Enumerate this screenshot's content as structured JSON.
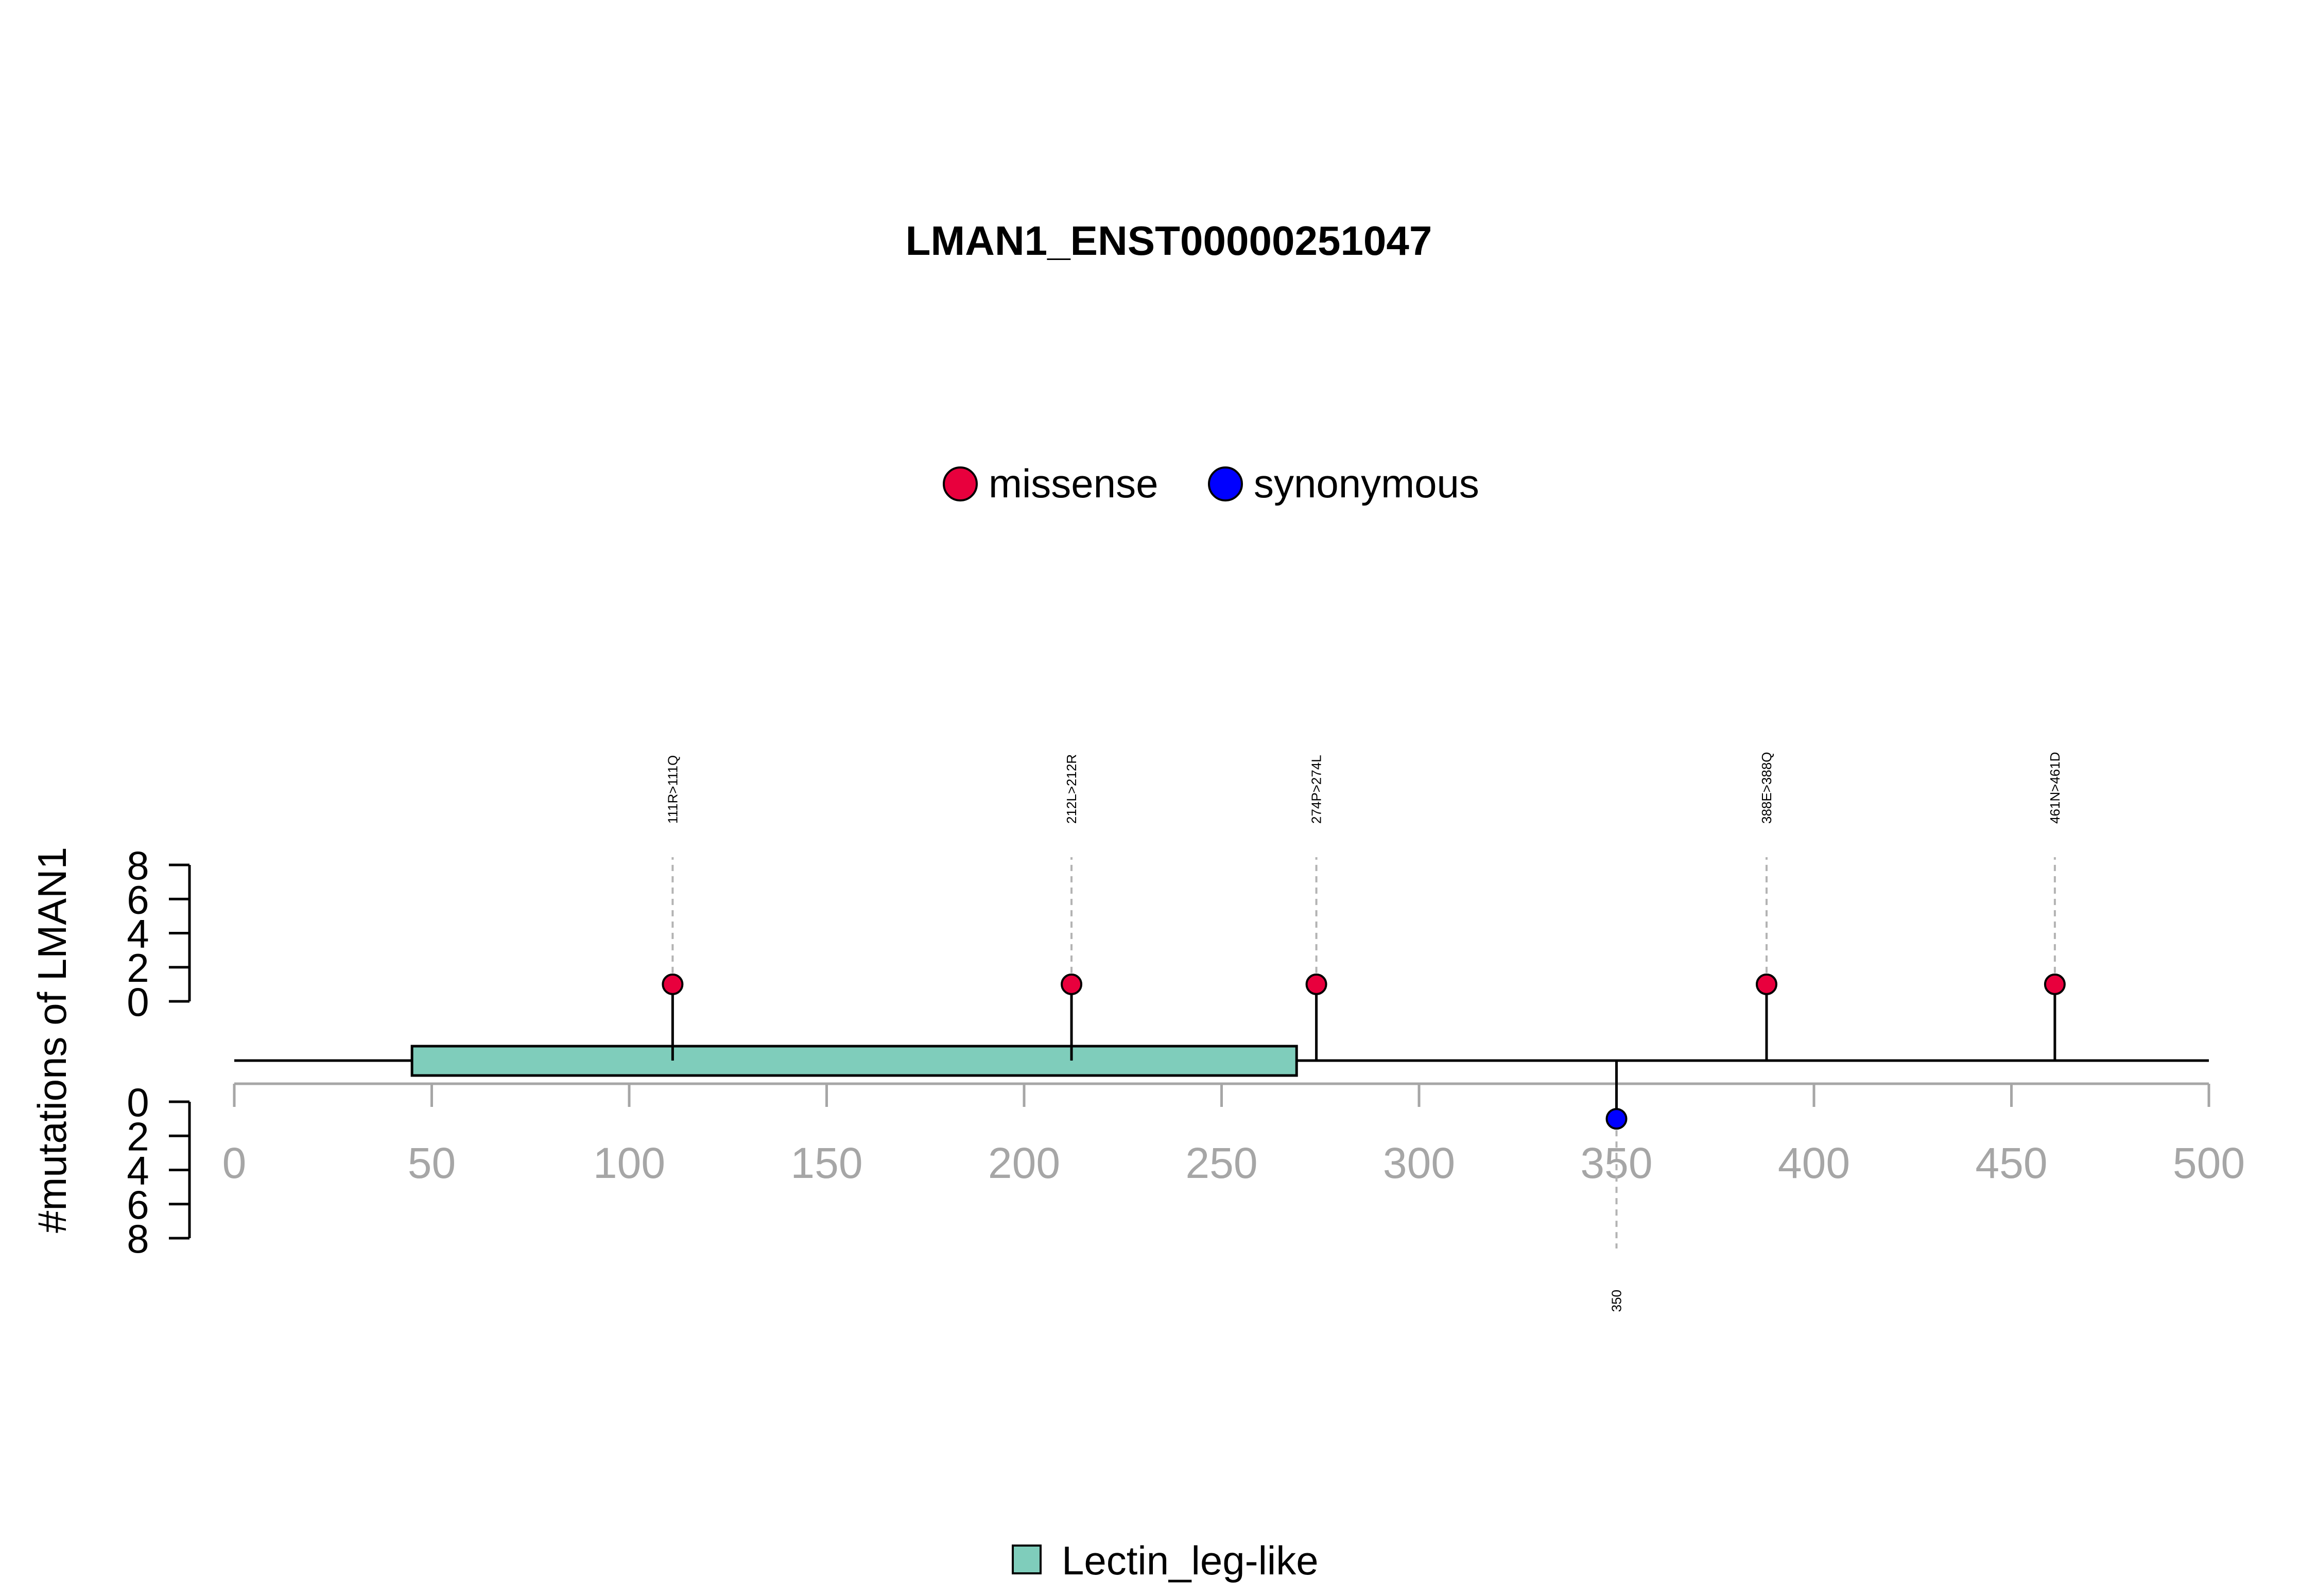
{
  "chart_data": {
    "type": "lollipop",
    "title": "LMAN1_ENST00000251047",
    "ylabel": "#mutations of LMAN1",
    "xlim": [
      0,
      500
    ],
    "x_ticks": [
      "0",
      "50",
      "100",
      "150",
      "200",
      "250",
      "300",
      "350",
      "400",
      "450",
      "500"
    ],
    "y_ticks": [
      "0",
      "2",
      "4",
      "6",
      "8"
    ],
    "ylim": [
      0,
      8
    ],
    "protein_length": 500,
    "legend_top": [
      {
        "name": "missense",
        "color": "#e8003d"
      },
      {
        "name": "synonymous",
        "color": "#0000ff"
      }
    ],
    "domains": [
      {
        "name": "Lectin_leg-like",
        "start": 45,
        "end": 269,
        "color": "#7fcdbb"
      }
    ],
    "mutations": [
      {
        "position": 111,
        "count": 1,
        "label": "111R>111Q",
        "type": "missense",
        "side": "top"
      },
      {
        "position": 212,
        "count": 1,
        "label": "212L>212R",
        "type": "missense",
        "side": "top"
      },
      {
        "position": 274,
        "count": 1,
        "label": "274P>274L",
        "type": "missense",
        "side": "top"
      },
      {
        "position": 388,
        "count": 1,
        "label": "388E>388Q",
        "type": "missense",
        "side": "top"
      },
      {
        "position": 461,
        "count": 1,
        "label": "461N>461D",
        "type": "missense",
        "side": "top"
      },
      {
        "position": 350,
        "count": 1,
        "label": "350",
        "type": "synonymous",
        "side": "bottom"
      }
    ],
    "legend_bottom": [
      {
        "name": "Lectin_leg-like",
        "color": "#7fcdbb"
      }
    ]
  }
}
